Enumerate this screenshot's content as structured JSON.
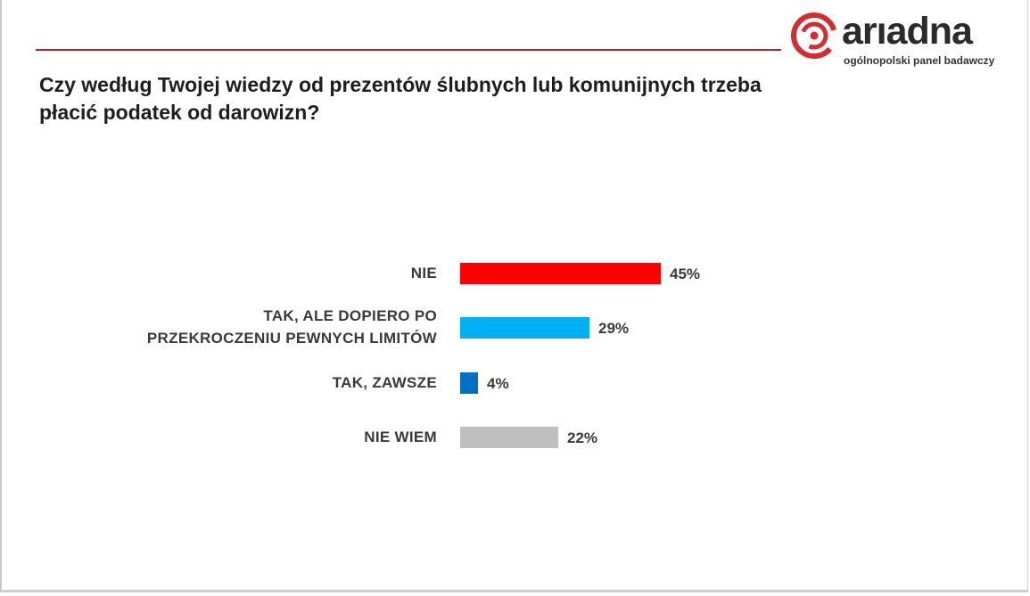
{
  "header": {
    "logo_text": "arıadna",
    "logo_tagline": "ogólnopolski panel badawczy",
    "colors": {
      "rule": "#b3282d",
      "logo_red": "#d42c31"
    }
  },
  "chart_data": {
    "type": "bar",
    "orientation": "horizontal",
    "title": "Czy według Twojej wiedzy od prezentów ślubnych lub komunijnych trzeba płacić podatek od darowizn?",
    "categories": [
      "NIE",
      "TAK, ALE DOPIERO PO PRZEKROCZENIU PEWNYCH LIMITÓW",
      "TAK, ZAWSZE",
      "NIE WIEM"
    ],
    "category_lines": [
      [
        "NIE"
      ],
      [
        "TAK, ALE DOPIERO PO",
        "PRZEKROCZENIU PEWNYCH LIMITÓW"
      ],
      [
        "TAK, ZAWSZE"
      ],
      [
        "NIE WIEM"
      ]
    ],
    "values": [
      45,
      29,
      4,
      22
    ],
    "value_labels": [
      "45%",
      "29%",
      "4%",
      "22%"
    ],
    "colors": [
      "#ff0000",
      "#00b0f0",
      "#0070c0",
      "#bfbfbf"
    ],
    "unit": "%",
    "xlabel": "",
    "ylabel": "",
    "grid": false,
    "legend": "none"
  }
}
